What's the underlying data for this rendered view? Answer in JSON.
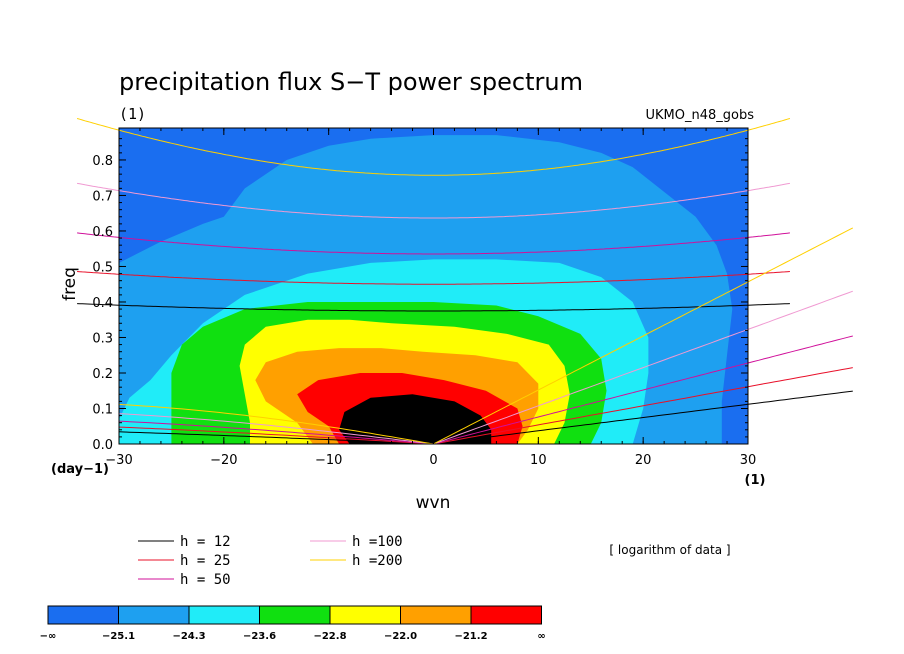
{
  "chart_data": {
    "type": "heatmap",
    "title": "precipitation flux S−T power spectrum",
    "units_label": "(1)",
    "dataset": "UKMO_n48_gobs",
    "xlabel": "wvn",
    "ylabel": "freq",
    "x_units": "(1)",
    "y_units": "(day−1)",
    "xlim": [
      -30,
      30
    ],
    "ylim": [
      0,
      0.89
    ],
    "xticks": [
      "−30",
      "−20",
      "−10",
      "0",
      "10",
      "20",
      "30"
    ],
    "yticks": [
      "0.0",
      "0.1",
      "0.2",
      "0.3",
      "0.4",
      "0.5",
      "0.6",
      "0.7",
      "0.8"
    ],
    "note": "[ logarithm of data ]",
    "colorbar": {
      "labels": [
        "−∞",
        "−25.1",
        "−24.3",
        "−23.6",
        "−22.8",
        "−22.0",
        "−21.2",
        "∞"
      ],
      "colors": [
        "#1a6ef0",
        "#1ea0f0",
        "#20ecf8",
        "#10e010",
        "#ffff00",
        "#ffa000",
        "#ff0000"
      ]
    },
    "contour_levels_approx": {
      "level_minus_25_1": [
        [
          -30,
          0.51
        ],
        [
          -26,
          0.57
        ],
        [
          -22,
          0.62
        ],
        [
          -20,
          0.64
        ],
        [
          -18,
          0.72
        ],
        [
          -14,
          0.8
        ],
        [
          -10,
          0.84
        ],
        [
          -6,
          0.86
        ],
        [
          0,
          0.87
        ],
        [
          6,
          0.87
        ],
        [
          12,
          0.85
        ],
        [
          16,
          0.82
        ],
        [
          19,
          0.78
        ],
        [
          22,
          0.71
        ],
        [
          25,
          0.64
        ],
        [
          27,
          0.56
        ],
        [
          28,
          0.48
        ],
        [
          28.5,
          0.38
        ],
        [
          28,
          0.25
        ],
        [
          27.5,
          0.12
        ],
        [
          27.5,
          0
        ]
      ],
      "level_minus_24_3": [
        [
          -30,
          0.07
        ],
        [
          -29,
          0.13
        ],
        [
          -27,
          0.18
        ],
        [
          -25,
          0.25
        ],
        [
          -22,
          0.34
        ],
        [
          -18,
          0.42
        ],
        [
          -12,
          0.48
        ],
        [
          -6,
          0.51
        ],
        [
          0,
          0.52
        ],
        [
          6,
          0.52
        ],
        [
          12,
          0.51
        ],
        [
          16,
          0.47
        ],
        [
          19,
          0.4
        ],
        [
          20.5,
          0.3
        ],
        [
          20.5,
          0.2
        ],
        [
          20,
          0.1
        ],
        [
          19,
          0
        ]
      ],
      "level_minus_23_6": [
        [
          -25,
          0.06
        ],
        [
          -25,
          0.12
        ],
        [
          -25,
          0.2
        ],
        [
          -24,
          0.28
        ],
        [
          -22,
          0.33
        ],
        [
          -18,
          0.38
        ],
        [
          -12,
          0.4
        ],
        [
          -6,
          0.4
        ],
        [
          0,
          0.4
        ],
        [
          6,
          0.39
        ],
        [
          10,
          0.36
        ],
        [
          14,
          0.31
        ],
        [
          16,
          0.24
        ],
        [
          16.5,
          0.15
        ],
        [
          16,
          0.06
        ],
        [
          15,
          0
        ]
      ],
      "level_minus_22_8": [
        [
          -17.5,
          0
        ],
        [
          -17.5,
          0.06
        ],
        [
          -18,
          0.14
        ],
        [
          -18.5,
          0.22
        ],
        [
          -18,
          0.28
        ],
        [
          -16,
          0.33
        ],
        [
          -12,
          0.35
        ],
        [
          -8,
          0.35
        ],
        [
          -4,
          0.34
        ],
        [
          2,
          0.33
        ],
        [
          7,
          0.31
        ],
        [
          11,
          0.28
        ],
        [
          12.5,
          0.22
        ],
        [
          13,
          0.14
        ],
        [
          12.5,
          0.06
        ],
        [
          11.5,
          0
        ]
      ],
      "level_minus_22_0": [
        [
          -11.5,
          0
        ],
        [
          -13,
          0.06
        ],
        [
          -16,
          0.12
        ],
        [
          -17,
          0.18
        ],
        [
          -16,
          0.23
        ],
        [
          -13,
          0.26
        ],
        [
          -9,
          0.27
        ],
        [
          -5,
          0.27
        ],
        [
          -1,
          0.26
        ],
        [
          4,
          0.25
        ],
        [
          8,
          0.23
        ],
        [
          10,
          0.17
        ],
        [
          10,
          0.1
        ],
        [
          9,
          0.04
        ],
        [
          8,
          0
        ]
      ],
      "level_minus_21_2": [
        [
          -9,
          0
        ],
        [
          -10,
          0.05
        ],
        [
          -12,
          0.09
        ],
        [
          -13,
          0.14
        ],
        [
          -11,
          0.18
        ],
        [
          -7,
          0.2
        ],
        [
          -3,
          0.2
        ],
        [
          1,
          0.18
        ],
        [
          5,
          0.15
        ],
        [
          8,
          0.1
        ],
        [
          8.5,
          0.05
        ],
        [
          8,
          0
        ]
      ],
      "level_max": [
        [
          -8,
          0
        ],
        [
          -9,
          0.04
        ],
        [
          -8.5,
          0.09
        ],
        [
          -6,
          0.13
        ],
        [
          -2,
          0.14
        ],
        [
          2,
          0.12
        ],
        [
          4.5,
          0.08
        ],
        [
          5.5,
          0.04
        ],
        [
          5.5,
          0
        ]
      ]
    },
    "dispersion_curves": [
      {
        "name": "h = 12",
        "color": "#000000",
        "depth": 12
      },
      {
        "name": "h = 25",
        "color": "#e8102a",
        "depth": 25
      },
      {
        "name": "h = 50",
        "color": "#d0109a",
        "depth": 50
      },
      {
        "name": "h =100",
        "color": "#f09ad2",
        "depth": 100
      },
      {
        "name": "h =200",
        "color": "#ffd000",
        "depth": 200
      }
    ]
  }
}
